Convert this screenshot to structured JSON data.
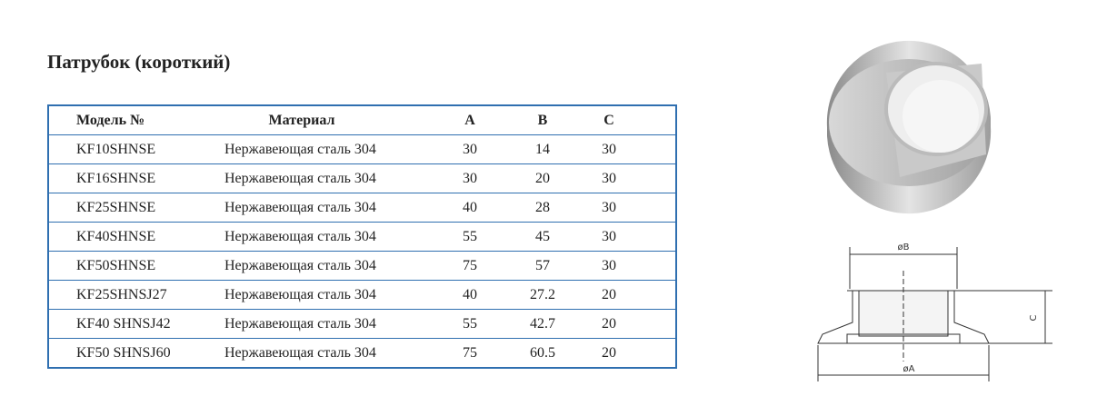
{
  "header": {
    "title": "Патрубок (короткий)"
  },
  "table": {
    "columns": [
      "Модель №",
      "Материал",
      "A",
      "B",
      "C"
    ],
    "rows": [
      [
        "KF10SHNSE",
        "Нержавеющая сталь 304",
        30,
        14,
        30
      ],
      [
        "KF16SHNSE",
        "Нержавеющая сталь 304",
        30,
        20,
        30
      ],
      [
        "KF25SHNSE",
        "Нержавеющая сталь 304",
        40,
        28,
        30
      ],
      [
        "KF40SHNSE",
        "Нержавеющая сталь 304",
        55,
        45,
        30
      ],
      [
        "KF50SHNSE",
        "Нержавеющая сталь 304",
        75,
        57,
        30
      ],
      [
        "KF25SHNSJ27",
        "Нержавеющая сталь 304",
        40,
        27.2,
        20
      ],
      [
        "KF40 SHNSJ42",
        "Нержавеющая сталь 304",
        55,
        42.7,
        20
      ],
      [
        "KF50 SHNSJ60",
        "Нержавеющая сталь 304",
        75,
        60.5,
        20
      ]
    ]
  },
  "drawing": {
    "labels": [
      "øB",
      "C",
      "øA"
    ]
  }
}
